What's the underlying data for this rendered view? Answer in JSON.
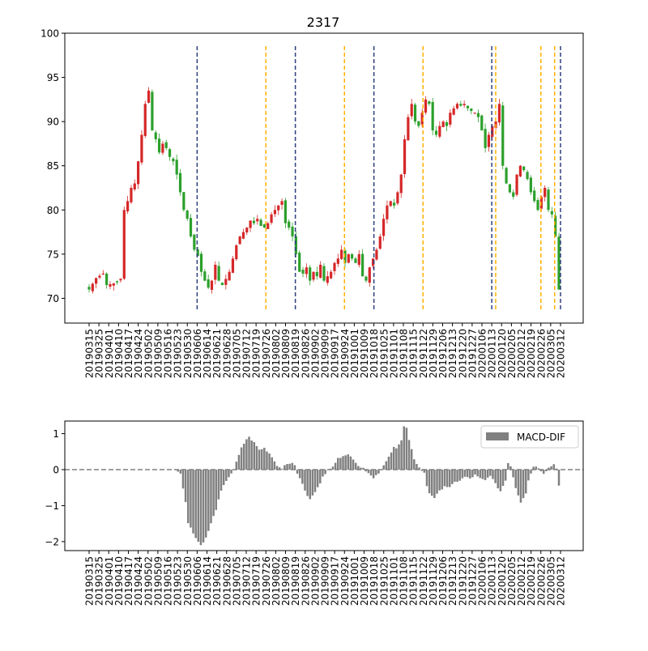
{
  "chart_data": [
    {
      "type": "candlestick",
      "title": "2317",
      "xlabel": "",
      "ylabel": "",
      "ylim": [
        67.2,
        100
      ],
      "yticks": [
        70,
        75,
        80,
        85,
        90,
        95,
        100
      ],
      "xtick_labels": [
        "20190315",
        "20190325",
        "20190401",
        "20190410",
        "20190417",
        "20190424",
        "20190502",
        "20190509",
        "20190516",
        "20190523",
        "20190530",
        "20190606",
        "20190614",
        "20190621",
        "20190628",
        "20190705",
        "20190712",
        "20190719",
        "20190726",
        "20190802",
        "20190809",
        "20190819",
        "20190826",
        "20190902",
        "20190909",
        "20190917",
        "20190924",
        "20191001",
        "20191009",
        "20191018",
        "20191025",
        "20191101",
        "20191108",
        "20191115",
        "20191122",
        "20191129",
        "20191206",
        "20191213",
        "20191220",
        "20191227",
        "20200106",
        "20200113",
        "20200120",
        "20200205",
        "20200212",
        "20200219",
        "20200226",
        "20200305",
        "20200312"
      ],
      "up_color": "#d62728",
      "down_color": "#2ca02c",
      "anchors": [
        [
          0,
          71
        ],
        [
          2,
          72.3
        ],
        [
          4,
          72.8
        ],
        [
          5,
          71.5
        ],
        [
          8,
          71.8
        ],
        [
          9,
          72.2
        ],
        [
          10,
          80
        ],
        [
          11,
          81
        ],
        [
          12,
          82.5
        ],
        [
          13,
          83
        ],
        [
          14,
          85.5
        ],
        [
          15,
          88.5
        ],
        [
          16,
          92
        ],
        [
          17,
          93.5
        ],
        [
          18,
          89
        ],
        [
          19,
          88
        ],
        [
          20,
          86.5
        ],
        [
          21,
          87.5
        ],
        [
          22,
          87
        ],
        [
          23,
          86
        ],
        [
          24,
          85.5
        ],
        [
          25,
          84
        ],
        [
          26,
          82
        ],
        [
          27,
          80
        ],
        [
          28,
          79
        ],
        [
          29,
          77
        ],
        [
          30,
          75.5
        ],
        [
          31,
          74.8
        ],
        [
          32,
          73
        ],
        [
          33,
          72
        ],
        [
          34,
          71.2
        ],
        [
          35,
          72
        ],
        [
          36,
          73.8
        ],
        [
          37,
          72
        ],
        [
          38,
          71.5
        ],
        [
          39,
          72.2
        ],
        [
          40,
          73
        ],
        [
          41,
          74.5
        ],
        [
          42,
          76
        ],
        [
          43,
          77
        ],
        [
          44,
          77.5
        ],
        [
          45,
          78
        ],
        [
          46,
          78.8
        ],
        [
          47,
          78.5
        ],
        [
          48,
          79
        ],
        [
          49,
          78.2
        ],
        [
          50,
          78
        ],
        [
          51,
          78.5
        ],
        [
          52,
          79.5
        ],
        [
          53,
          80
        ],
        [
          54,
          80.5
        ],
        [
          55,
          81
        ],
        [
          56,
          78.5
        ],
        [
          57,
          78
        ],
        [
          58,
          77
        ],
        [
          59,
          75
        ],
        [
          60,
          73
        ],
        [
          61,
          72.8
        ],
        [
          62,
          73.5
        ],
        [
          63,
          72
        ],
        [
          64,
          73
        ],
        [
          65,
          72.5
        ],
        [
          66,
          73.8
        ],
        [
          67,
          72
        ],
        [
          68,
          72.5
        ],
        [
          69,
          73
        ],
        [
          70,
          74
        ],
        [
          71,
          74.5
        ],
        [
          72,
          75.5
        ],
        [
          73,
          74
        ],
        [
          74,
          75
        ],
        [
          75,
          74.5
        ],
        [
          76,
          74
        ],
        [
          77,
          75
        ],
        [
          78,
          72.5
        ],
        [
          79,
          72
        ],
        [
          80,
          73.5
        ],
        [
          81,
          74.5
        ],
        [
          82,
          75.5
        ],
        [
          83,
          77
        ],
        [
          84,
          79
        ],
        [
          85,
          80.5
        ],
        [
          86,
          81
        ],
        [
          87,
          80.5
        ],
        [
          88,
          82
        ],
        [
          89,
          84
        ],
        [
          90,
          88
        ],
        [
          91,
          90.5
        ],
        [
          92,
          92
        ],
        [
          93,
          90
        ],
        [
          94,
          89.5
        ],
        [
          95,
          91
        ],
        [
          96,
          92.5
        ],
        [
          97,
          92
        ],
        [
          98,
          89
        ],
        [
          99,
          88.5
        ],
        [
          100,
          89.5
        ],
        [
          101,
          90
        ],
        [
          102,
          89.5
        ],
        [
          103,
          91
        ],
        [
          104,
          91.5
        ],
        [
          105,
          92
        ],
        [
          106,
          91.8
        ],
        [
          107,
          92
        ],
        [
          108,
          91.5
        ],
        [
          109,
          91.2
        ],
        [
          110,
          91
        ],
        [
          111,
          90.5
        ],
        [
          112,
          89
        ],
        [
          113,
          87
        ],
        [
          114,
          88.5
        ],
        [
          115,
          89.5
        ],
        [
          116,
          90
        ],
        [
          117,
          92
        ],
        [
          118,
          85
        ],
        [
          119,
          83
        ],
        [
          120,
          82
        ],
        [
          121,
          81.5
        ],
        [
          122,
          84
        ],
        [
          123,
          85
        ],
        [
          124,
          84.5
        ],
        [
          125,
          83.5
        ],
        [
          126,
          82
        ],
        [
          127,
          81
        ],
        [
          128,
          80
        ],
        [
          129,
          81.5
        ],
        [
          130,
          82.5
        ],
        [
          131,
          80
        ],
        [
          132,
          79.5
        ],
        [
          133,
          77
        ],
        [
          134,
          71
        ]
      ],
      "vlines_navy_date_index": [
        11,
        21,
        29,
        41,
        48
      ],
      "vlines_orange_date_index": [
        18,
        26,
        34,
        41.4,
        46,
        47.4
      ],
      "vline_colors": {
        "navy": "#2e3f7f",
        "orange": "#ffb000"
      }
    },
    {
      "type": "bar",
      "ylim": [
        -2.25,
        1.35
      ],
      "yticks": [
        -2,
        -1,
        0,
        1
      ],
      "zero_line": true,
      "bar_color": "#808080",
      "legend": {
        "label": "MACD-DIF",
        "position": "top-right"
      },
      "anchors": [
        [
          0,
          0
        ],
        [
          34,
          0
        ],
        [
          36,
          -0.1
        ],
        [
          38,
          -0.9
        ],
        [
          39,
          -1.5
        ],
        [
          40,
          -1.6
        ],
        [
          42,
          -1.9
        ],
        [
          44,
          -2.1
        ],
        [
          46,
          -1.9
        ],
        [
          48,
          -1.5
        ],
        [
          50,
          -1.1
        ],
        [
          52,
          -0.6
        ],
        [
          54,
          -0.3
        ],
        [
          56,
          -0.1
        ],
        [
          57,
          0
        ],
        [
          58,
          0.2
        ],
        [
          60,
          0.6
        ],
        [
          62,
          0.85
        ],
        [
          63,
          0.9
        ],
        [
          65,
          0.75
        ],
        [
          67,
          0.55
        ],
        [
          69,
          0.6
        ],
        [
          71,
          0.45
        ],
        [
          73,
          0.25
        ],
        [
          74,
          0.1
        ],
        [
          76,
          0.05
        ],
        [
          78,
          0.15
        ],
        [
          80,
          0.2
        ],
        [
          81,
          0.1
        ],
        [
          82,
          -0.1
        ],
        [
          84,
          -0.4
        ],
        [
          86,
          -0.75
        ],
        [
          87,
          -0.8
        ],
        [
          89,
          -0.6
        ],
        [
          91,
          -0.4
        ],
        [
          92,
          -0.2
        ],
        [
          94,
          0
        ],
        [
          96,
          0.1
        ],
        [
          98,
          0.3
        ],
        [
          100,
          0.4
        ],
        [
          102,
          0.42
        ],
        [
          104,
          0.3
        ],
        [
          106,
          0.1
        ],
        [
          108,
          0.05
        ],
        [
          110,
          -0.1
        ],
        [
          112,
          -0.25
        ],
        [
          114,
          -0.1
        ],
        [
          116,
          0.1
        ],
        [
          118,
          0.35
        ],
        [
          120,
          0.65
        ],
        [
          121,
          0.6
        ],
        [
          123,
          0.8
        ],
        [
          124,
          1.2
        ],
        [
          125,
          1.15
        ],
        [
          126,
          0.8
        ],
        [
          128,
          0.3
        ],
        [
          130,
          0.05
        ],
        [
          132,
          -0.1
        ],
        [
          133,
          -0.45
        ],
        [
          134,
          -0.65
        ],
        [
          136,
          -0.78
        ],
        [
          138,
          -0.6
        ],
        [
          140,
          -0.45
        ],
        [
          142,
          -0.5
        ],
        [
          144,
          -0.35
        ],
        [
          146,
          -0.3
        ],
        [
          148,
          -0.2
        ],
        [
          150,
          -0.25
        ],
        [
          152,
          -0.15
        ],
        [
          154,
          -0.25
        ],
        [
          156,
          -0.3
        ],
        [
          158,
          -0.15
        ],
        [
          160,
          -0.4
        ],
        [
          162,
          -0.6
        ],
        [
          164,
          -0.3
        ],
        [
          165,
          0.2
        ],
        [
          166,
          0.1
        ],
        [
          168,
          -0.5
        ],
        [
          170,
          -0.9
        ],
        [
          172,
          -0.65
        ],
        [
          173,
          -0.3
        ],
        [
          175,
          0.1
        ],
        [
          177,
          0.05
        ],
        [
          179,
          -0.1
        ],
        [
          181,
          0.05
        ],
        [
          183,
          0.15
        ],
        [
          184,
          0.05
        ],
        [
          185,
          -0.45
        ]
      ]
    }
  ]
}
